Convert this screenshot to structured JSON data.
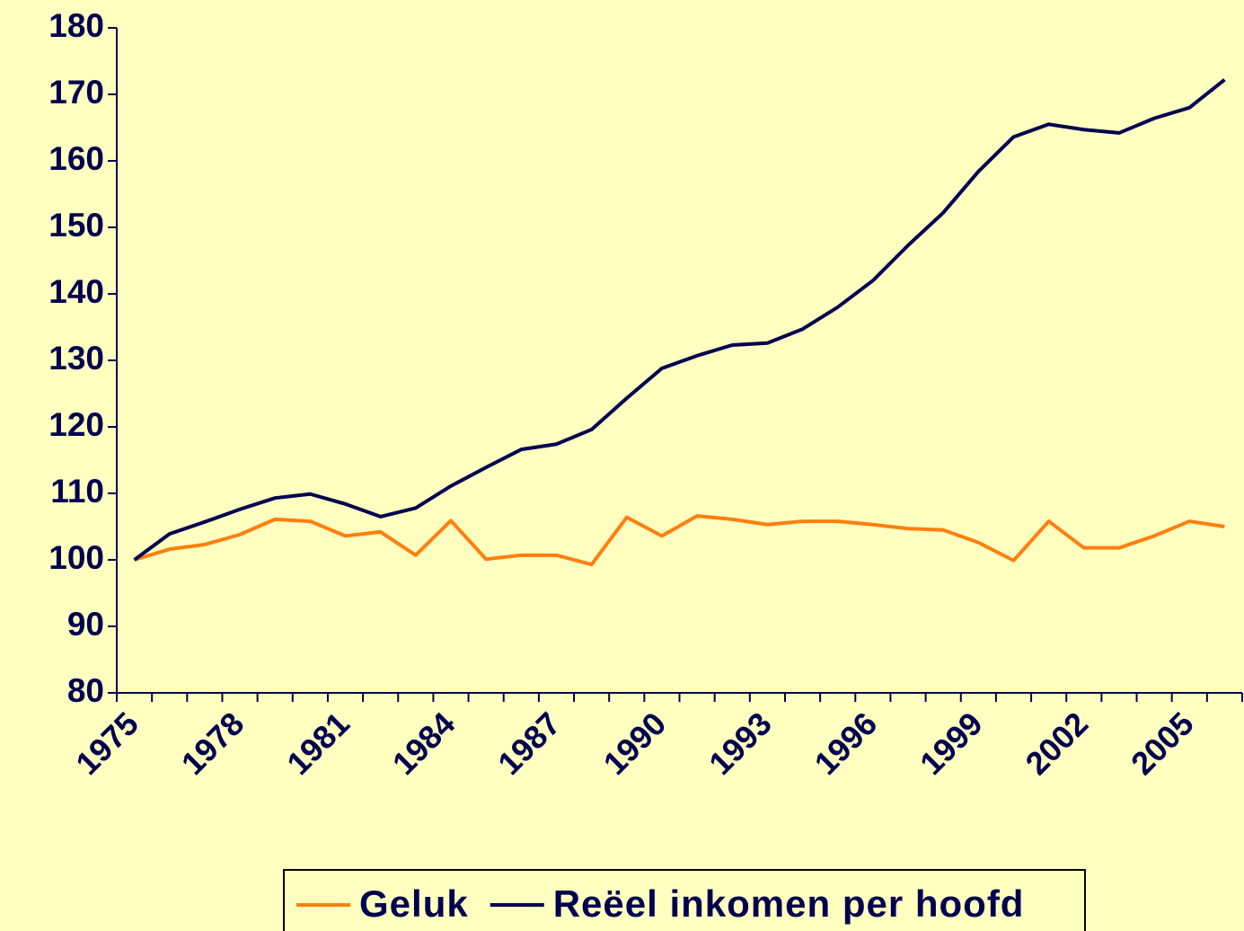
{
  "chart_data": {
    "type": "line",
    "categories": [
      "1975",
      null,
      null,
      "1978",
      null,
      null,
      "1981",
      null,
      null,
      "1984",
      null,
      null,
      "1987",
      null,
      null,
      "1990",
      null,
      null,
      "1993",
      null,
      null,
      "1996",
      null,
      null,
      "1999",
      null,
      null,
      "2002",
      null,
      null,
      "2005",
      null
    ],
    "series": [
      {
        "name": "Geluk",
        "color": "#ff7f0e",
        "values": [
          100,
          101.6,
          102.3,
          103.8,
          106.1,
          105.8,
          103.6,
          104.2,
          100.7,
          105.9,
          100.1,
          100.7,
          100.7,
          99.3,
          106.4,
          103.6,
          106.6,
          106.1,
          105.3,
          105.8,
          105.8,
          105.3,
          104.7,
          104.5,
          102.6,
          99.9,
          105.8,
          101.8,
          101.8,
          103.6,
          105.8,
          105
        ]
      },
      {
        "name": "Reëel inkomen per hoofd",
        "color": "#000050",
        "values": [
          100,
          103.9,
          105.7,
          107.6,
          109.3,
          109.9,
          108.4,
          106.5,
          107.8,
          111.1,
          113.9,
          116.6,
          117.4,
          119.6,
          124.3,
          128.8,
          130.7,
          132.3,
          132.6,
          134.7,
          138,
          142,
          147.3,
          152.2,
          158.4,
          163.6,
          165.5,
          164.7,
          164.2,
          166.4,
          168,
          172.2
        ]
      }
    ],
    "ylim": [
      80,
      180
    ],
    "yticks": [
      80,
      90,
      100,
      110,
      120,
      130,
      140,
      150,
      160,
      170,
      180
    ],
    "legend": "bottom"
  }
}
